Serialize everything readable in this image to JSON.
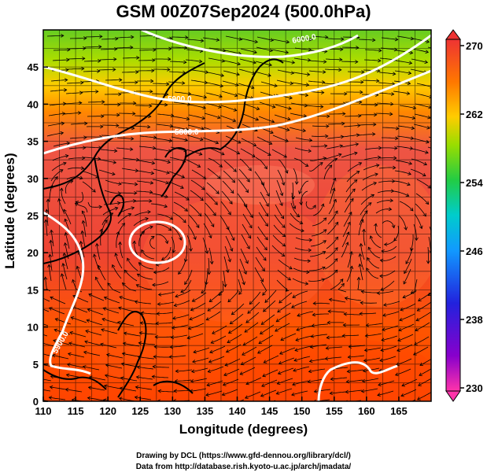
{
  "title": "GSM 00Z07Sep2024 (500.0hPa)",
  "map": {
    "xlabel": "Longitude (degrees)",
    "ylabel": "Latitude  (degrees)",
    "lon_range": [
      110,
      170
    ],
    "lat_range": [
      0,
      50
    ],
    "lon_ticks": [
      "110",
      "115",
      "120",
      "125",
      "130",
      "135",
      "140",
      "145",
      "150",
      "155",
      "160",
      "165"
    ],
    "lat_ticks": [
      "0",
      "5",
      "10",
      "15",
      "20",
      "25",
      "30",
      "35",
      "40",
      "45"
    ],
    "contour_labels": [
      "5800.0",
      "5900.0",
      "6000.0",
      "5900.0"
    ]
  },
  "colorbar": {
    "ticks": [
      "270",
      "262",
      "254",
      "246",
      "238",
      "230"
    ],
    "colors": [
      "#ff44aa",
      "#9900cc",
      "#2222cc",
      "#1188ff",
      "#00cccc",
      "#22cc44",
      "#88dd00",
      "#ddcc00",
      "#ffaa00",
      "#ff6600",
      "#ff2222",
      "#ee4444"
    ]
  },
  "credits": {
    "line1": "Drawing by DCL (https://www.gfd-dennou.org/library/dcl/)",
    "line2": "Data from http://database.rish.kyoto-u.ac.jp/arch/jmadata/"
  }
}
